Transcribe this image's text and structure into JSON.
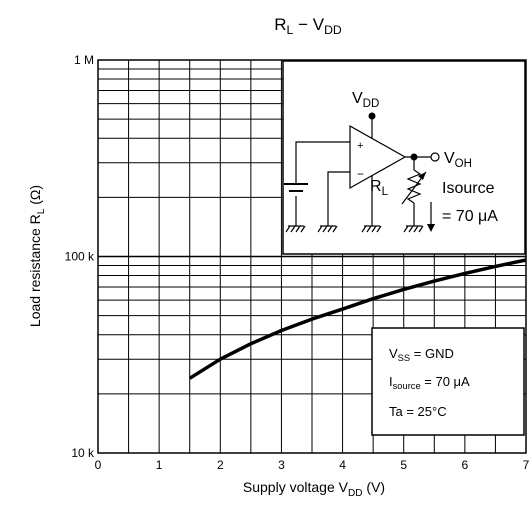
{
  "chart_data": {
    "type": "line",
    "title": {
      "main": "R",
      "main_sub": "L",
      "sep": " − V",
      "sep_sub": "DD"
    },
    "xlabel": {
      "text": "Supply voltage   V",
      "sub": "DD",
      "unit": "(V)"
    },
    "ylabel": {
      "text": "Load resistance   R",
      "sub": "L",
      "unit": "(Ω)"
    },
    "xlim": [
      0,
      7
    ],
    "ylim": [
      10000,
      1000000
    ],
    "yscale": "log",
    "grid": true,
    "x_ticks": [
      {
        "value": 0,
        "label": "0"
      },
      {
        "value": 1,
        "label": "1"
      },
      {
        "value": 2,
        "label": "2"
      },
      {
        "value": 3,
        "label": "3"
      },
      {
        "value": 4,
        "label": "4"
      },
      {
        "value": 5,
        "label": "5"
      },
      {
        "value": 6,
        "label": "6"
      },
      {
        "value": 7,
        "label": "7"
      }
    ],
    "y_ticks": [
      {
        "value": 10000,
        "label": "10 k"
      },
      {
        "value": 100000,
        "label": "100 k"
      },
      {
        "value": 1000000,
        "label": "1 M"
      }
    ],
    "series": [
      {
        "x": [
          1.5,
          2.0,
          2.5,
          3.0,
          3.5,
          4.0,
          4.5,
          5.0,
          5.5,
          6.0,
          6.5,
          7.0
        ],
        "y": [
          24000,
          30000,
          36000,
          42000,
          48000,
          54000,
          61000,
          68000,
          75000,
          82000,
          89000,
          96000
        ]
      }
    ],
    "conditions": [
      {
        "a": "V",
        "a_sub": "SS",
        "b": " = GND"
      },
      {
        "a": "I",
        "a_sub": "source",
        "b": " = 70 μA"
      },
      {
        "a": "Ta = 25°C",
        "a_sub": "",
        "b": ""
      }
    ],
    "circuit": {
      "vdd": "V",
      "vdd_sub": "DD",
      "voh": "V",
      "voh_sub": "OH",
      "rl": "R",
      "rl_sub": "L",
      "plus": "+",
      "minus": "−",
      "isource": "Isource",
      "current": "= 70 μA"
    }
  }
}
